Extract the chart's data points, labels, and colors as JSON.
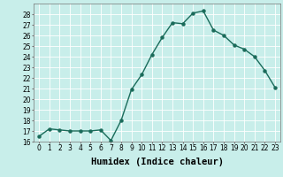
{
  "x": [
    0,
    1,
    2,
    3,
    4,
    5,
    6,
    7,
    8,
    9,
    10,
    11,
    12,
    13,
    14,
    15,
    16,
    17,
    18,
    19,
    20,
    21,
    22,
    23
  ],
  "y": [
    16.5,
    17.2,
    17.1,
    17.0,
    17.0,
    17.0,
    17.1,
    16.1,
    18.0,
    20.9,
    22.3,
    24.2,
    25.8,
    27.2,
    27.1,
    28.1,
    28.3,
    26.5,
    26.0,
    25.1,
    24.7,
    24.0,
    22.7,
    21.1
  ],
  "line_color": "#1a6b5a",
  "marker": "o",
  "markersize": 2.2,
  "linewidth": 1.0,
  "xlabel": "Humidex (Indice chaleur)",
  "ylim": [
    16,
    29
  ],
  "xlim": [
    -0.5,
    23.5
  ],
  "yticks": [
    16,
    17,
    18,
    19,
    20,
    21,
    22,
    23,
    24,
    25,
    26,
    27,
    28
  ],
  "xticks": [
    0,
    1,
    2,
    3,
    4,
    5,
    6,
    7,
    8,
    9,
    10,
    11,
    12,
    13,
    14,
    15,
    16,
    17,
    18,
    19,
    20,
    21,
    22,
    23
  ],
  "xtick_labels": [
    "0",
    "1",
    "2",
    "3",
    "4",
    "5",
    "6",
    "7",
    "8",
    "9",
    "10",
    "11",
    "12",
    "13",
    "14",
    "15",
    "16",
    "17",
    "18",
    "19",
    "20",
    "21",
    "22",
    "23"
  ],
  "bg_color": "#c8eeea",
  "grid_color": "#ffffff",
  "axis_color": "#777777",
  "tick_fontsize": 5.5,
  "xlabel_fontsize": 7.5
}
